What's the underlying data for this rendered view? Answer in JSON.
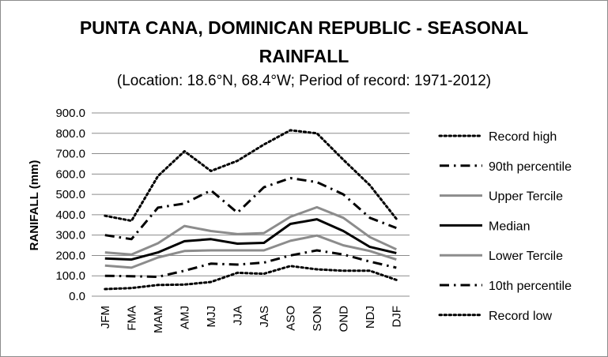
{
  "chart_data": {
    "type": "line",
    "title": "PUNTA CANA, DOMINICAN REPUBLIC - SEASONAL",
    "title_line2": "RAINFALL",
    "subtitle": "(Location: 18.6°N, 68.4°W; Period of record: 1971-2012)",
    "ylabel": "RANIFALL (mm)",
    "xlabel": "",
    "ylim": [
      0,
      900
    ],
    "ytick_labels": [
      "0.0",
      "100.0",
      "200.0",
      "300.0",
      "400.0",
      "500.0",
      "600.0",
      "700.0",
      "800.0",
      "900.0"
    ],
    "grid": true,
    "legend_position": "right",
    "categories": [
      "JFM",
      "FMA",
      "MAM",
      "AMJ",
      "MJJ",
      "JJA",
      "JAS",
      "ASO",
      "SON",
      "OND",
      "NDJ",
      "DJF"
    ],
    "series": [
      {
        "name": "Record high",
        "style": "dotted",
        "color": "#000000",
        "values": [
          395,
          370,
          590,
          712,
          615,
          665,
          745,
          815,
          800,
          670,
          545,
          380
        ]
      },
      {
        "name": "90th percentile",
        "style": "dashdot",
        "color": "#000000",
        "values": [
          300,
          280,
          435,
          455,
          520,
          410,
          535,
          580,
          560,
          500,
          385,
          335
        ]
      },
      {
        "name": "Upper Tercile",
        "style": "solid",
        "color": "#8c8c8c",
        "values": [
          215,
          205,
          260,
          345,
          320,
          305,
          310,
          390,
          437,
          385,
          290,
          230
        ]
      },
      {
        "name": "Median",
        "style": "solid",
        "color": "#000000",
        "values": [
          185,
          180,
          215,
          270,
          280,
          258,
          262,
          355,
          378,
          320,
          242,
          212
        ]
      },
      {
        "name": "Lower Tercile",
        "style": "solid",
        "color": "#8c8c8c",
        "values": [
          150,
          140,
          190,
          222,
          225,
          225,
          225,
          272,
          298,
          250,
          222,
          180
        ]
      },
      {
        "name": "10th percentile",
        "style": "dashdot",
        "color": "#000000",
        "values": [
          100,
          98,
          95,
          125,
          160,
          155,
          165,
          200,
          225,
          205,
          170,
          140
        ]
      },
      {
        "name": "Record low",
        "style": "dotted",
        "color": "#000000",
        "values": [
          35,
          40,
          55,
          57,
          70,
          115,
          110,
          148,
          132,
          125,
          125,
          80
        ]
      }
    ]
  }
}
